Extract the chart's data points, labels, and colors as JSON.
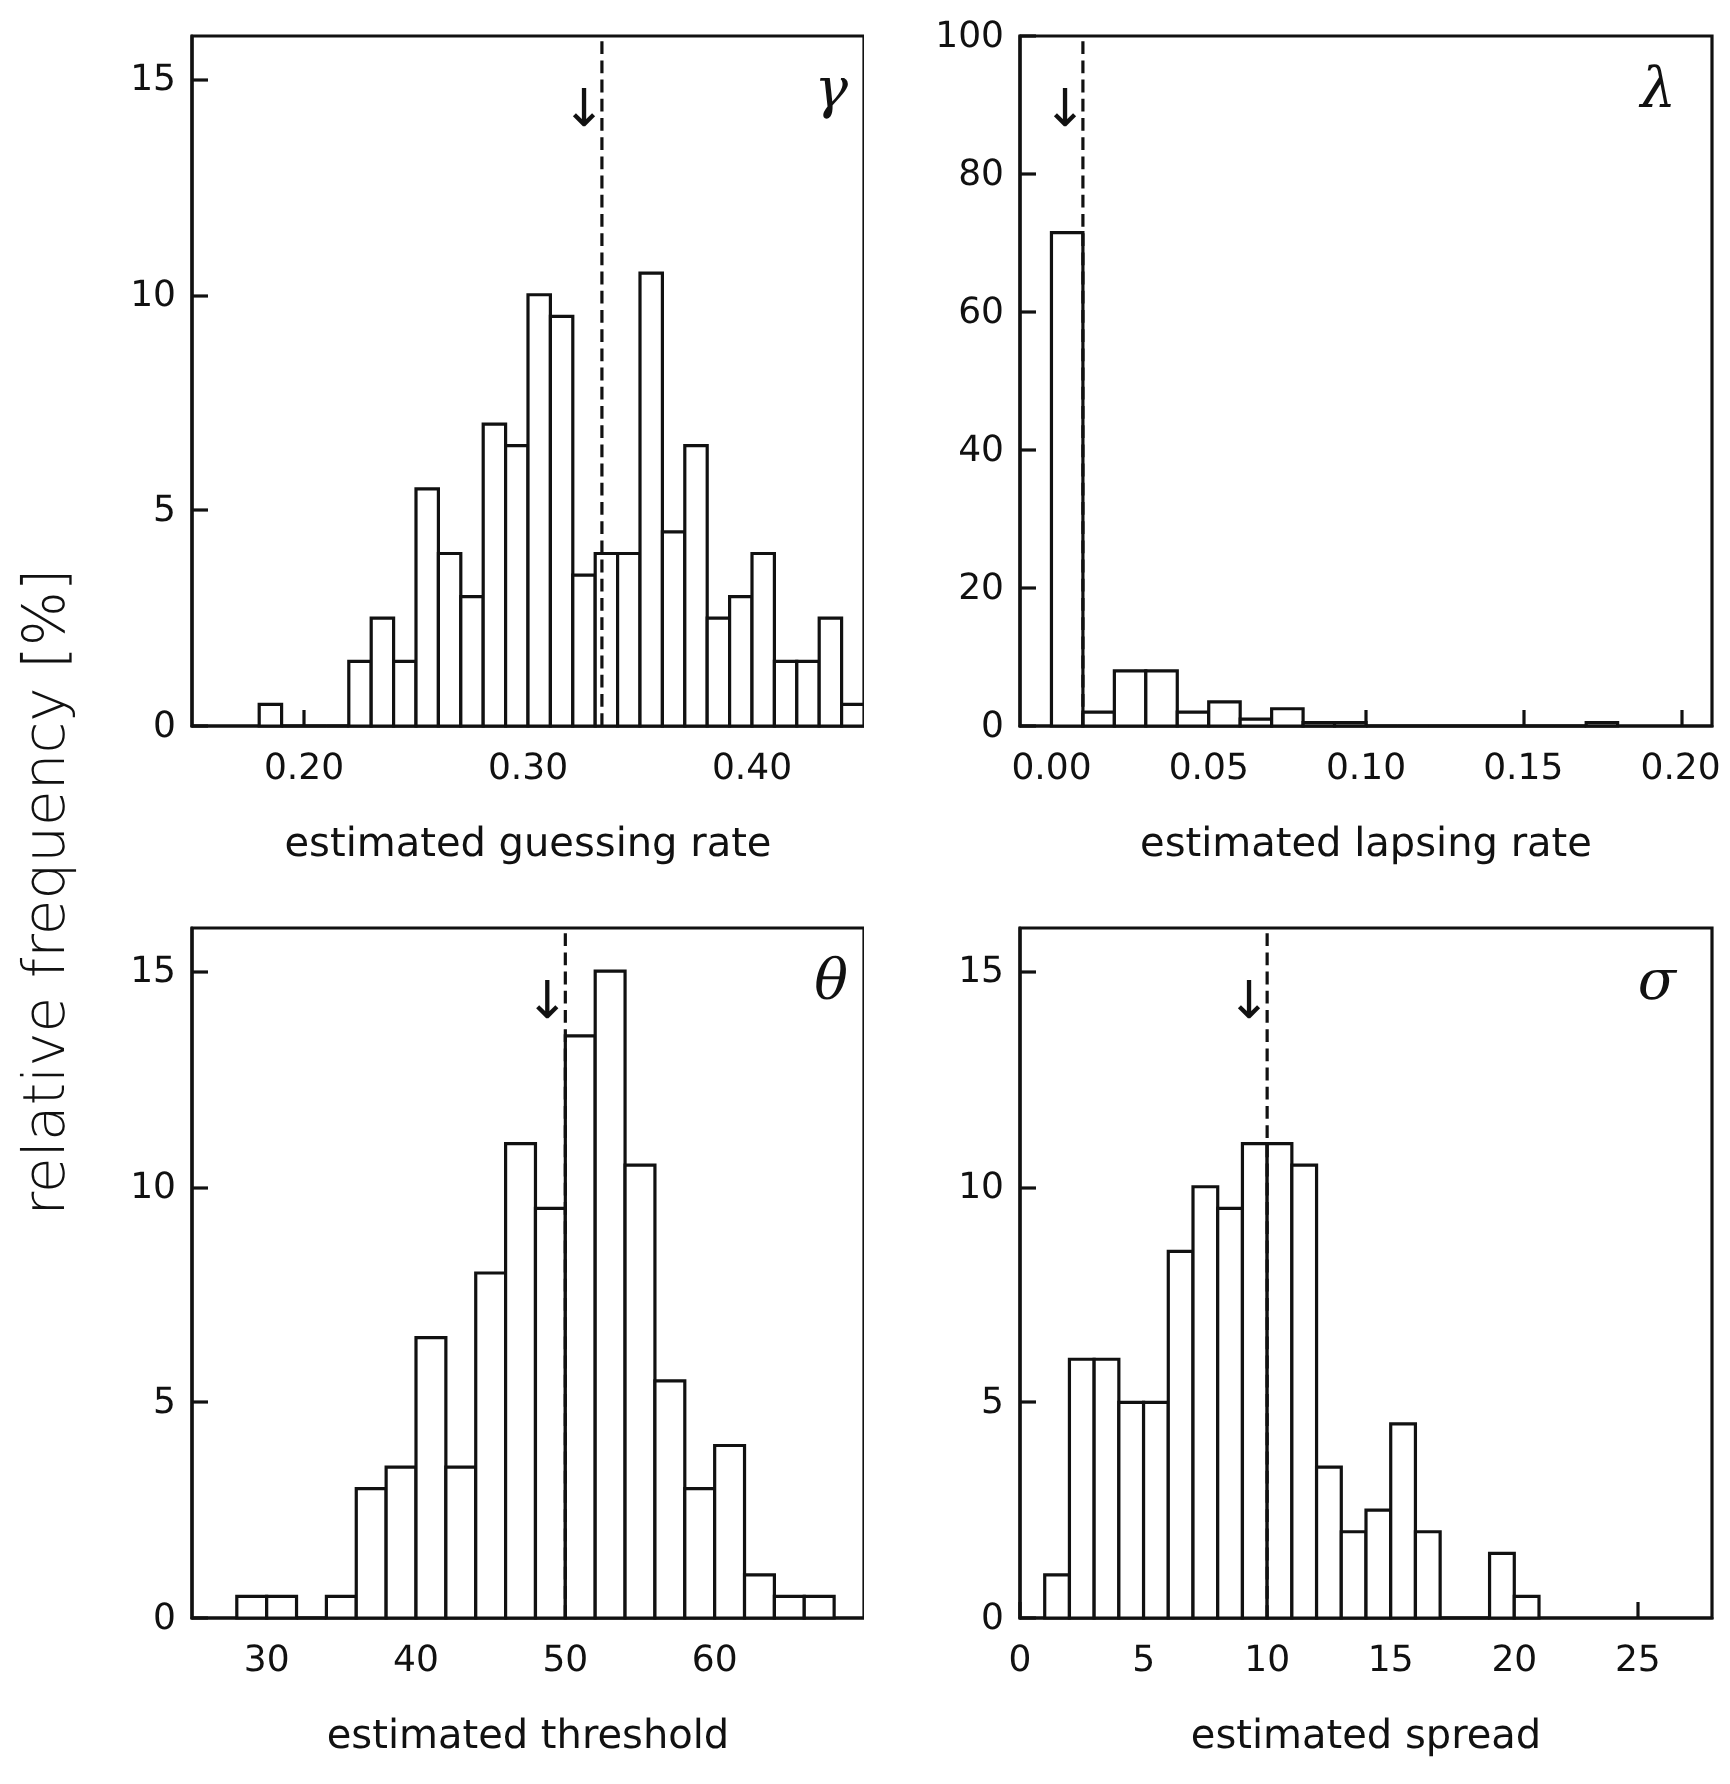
{
  "chart_data": [
    {
      "type": "histogram",
      "xlabel": "estimated guessing rate",
      "ylabel": "relative frequency [%]",
      "bins": [
        0.18,
        0.19,
        0.2,
        0.21,
        0.22,
        0.23,
        0.24,
        0.25,
        0.26,
        0.27,
        0.28,
        0.29,
        0.3,
        0.31,
        0.32,
        0.33,
        0.34,
        0.35,
        0.36,
        0.37,
        0.38,
        0.39,
        0.4,
        0.41,
        0.42,
        0.43,
        0.44,
        0.45
      ],
      "values": [
        0.5,
        0,
        0,
        0,
        1.5,
        2.5,
        1.5,
        5.5,
        4,
        3,
        7,
        6.5,
        10,
        9.5,
        3.5,
        4,
        4,
        10.5,
        4.5,
        6.5,
        2.5,
        3,
        4,
        1.5,
        1.5,
        2.5,
        0.5
      ],
      "color": "#ffffff",
      "xlim": [
        0.15,
        0.45
      ],
      "xticks": [
        {
          "value": 0.2,
          "label": "0.20"
        },
        {
          "value": 0.3,
          "label": "0.30"
        },
        {
          "value": 0.4,
          "label": "0.40"
        }
      ],
      "ylim": [
        0,
        16
      ],
      "yticks": [
        0,
        5,
        10,
        15
      ],
      "grid": false,
      "ref_lines": [
        {
          "axis": "x",
          "value": 0.333,
          "label": null,
          "line_style": "dashed"
        }
      ],
      "annotations": [
        "γ",
        "↓"
      ]
    },
    {
      "type": "histogram",
      "xlabel": "estimated lapsing rate",
      "bins": [
        0,
        0.01,
        0.02,
        0.03,
        0.04,
        0.05,
        0.06,
        0.07,
        0.08,
        0.09,
        0.1,
        0.11,
        0.12,
        0.13,
        0.14,
        0.15,
        0.16,
        0.17,
        0.18
      ],
      "values": [
        71.5,
        2,
        8,
        8,
        2,
        3.5,
        1,
        2.5,
        0.5,
        0.5,
        0,
        0,
        0,
        0,
        0,
        0,
        0,
        0.5
      ],
      "color": "#ffffff",
      "xlim": [
        -0.01,
        0.21
      ],
      "xticks": [
        {
          "value": 0,
          "label": "0.00"
        },
        {
          "value": 0.05,
          "label": "0.05"
        },
        {
          "value": 0.1,
          "label": "0.10"
        },
        {
          "value": 0.15,
          "label": "0.15"
        },
        {
          "value": 0.2,
          "label": "0.20"
        }
      ],
      "ylim": [
        0,
        100
      ],
      "yticks": [
        0,
        20,
        40,
        60,
        80,
        100
      ],
      "grid": false,
      "ref_lines": [
        {
          "axis": "x",
          "value": 0.01,
          "label": null,
          "line_style": "dashed"
        }
      ],
      "annotations": [
        "λ",
        "↓"
      ]
    },
    {
      "type": "histogram",
      "xlabel": "estimated threshold",
      "bins": [
        28,
        30,
        32,
        34,
        36,
        38,
        40,
        42,
        44,
        46,
        48,
        50,
        52,
        54,
        56,
        58,
        60,
        62,
        64,
        66,
        68
      ],
      "values": [
        0.5,
        0.5,
        0,
        0.5,
        3,
        3.5,
        6.5,
        3.5,
        8,
        11,
        9.5,
        13.5,
        15,
        10.5,
        5.5,
        3,
        4,
        1,
        0.5,
        0.5
      ],
      "color": "#ffffff",
      "xlim": [
        25,
        70
      ],
      "xticks": [
        30,
        40,
        50,
        60
      ],
      "ylim": [
        0,
        16
      ],
      "yticks": [
        0,
        5,
        10,
        15
      ],
      "grid": false,
      "ref_lines": [
        {
          "axis": "x",
          "value": 50,
          "label": null,
          "line_style": "dashed"
        }
      ],
      "annotations": [
        "θ",
        "↓"
      ]
    },
    {
      "type": "histogram",
      "xlabel": "estimated spread",
      "bins": [
        1,
        2,
        3,
        4,
        5,
        6,
        7,
        8,
        9,
        10,
        11,
        12,
        13,
        14,
        15,
        16,
        17,
        18,
        19,
        20,
        21
      ],
      "values": [
        1,
        6,
        6,
        5,
        5,
        8.5,
        10,
        9.5,
        11,
        11,
        10.5,
        3.5,
        2,
        2.5,
        4.5,
        2,
        0,
        0,
        1.5,
        0.5
      ],
      "color": "#ffffff",
      "xlim": [
        0,
        28
      ],
      "xticks": [
        0,
        5,
        10,
        15,
        20,
        25
      ],
      "ylim": [
        0,
        16
      ],
      "yticks": [
        0,
        5,
        10,
        15
      ],
      "grid": false,
      "ref_lines": [
        {
          "axis": "x",
          "value": 10,
          "label": null,
          "line_style": "dashed"
        }
      ],
      "annotations": [
        "σ",
        "↓"
      ]
    }
  ]
}
